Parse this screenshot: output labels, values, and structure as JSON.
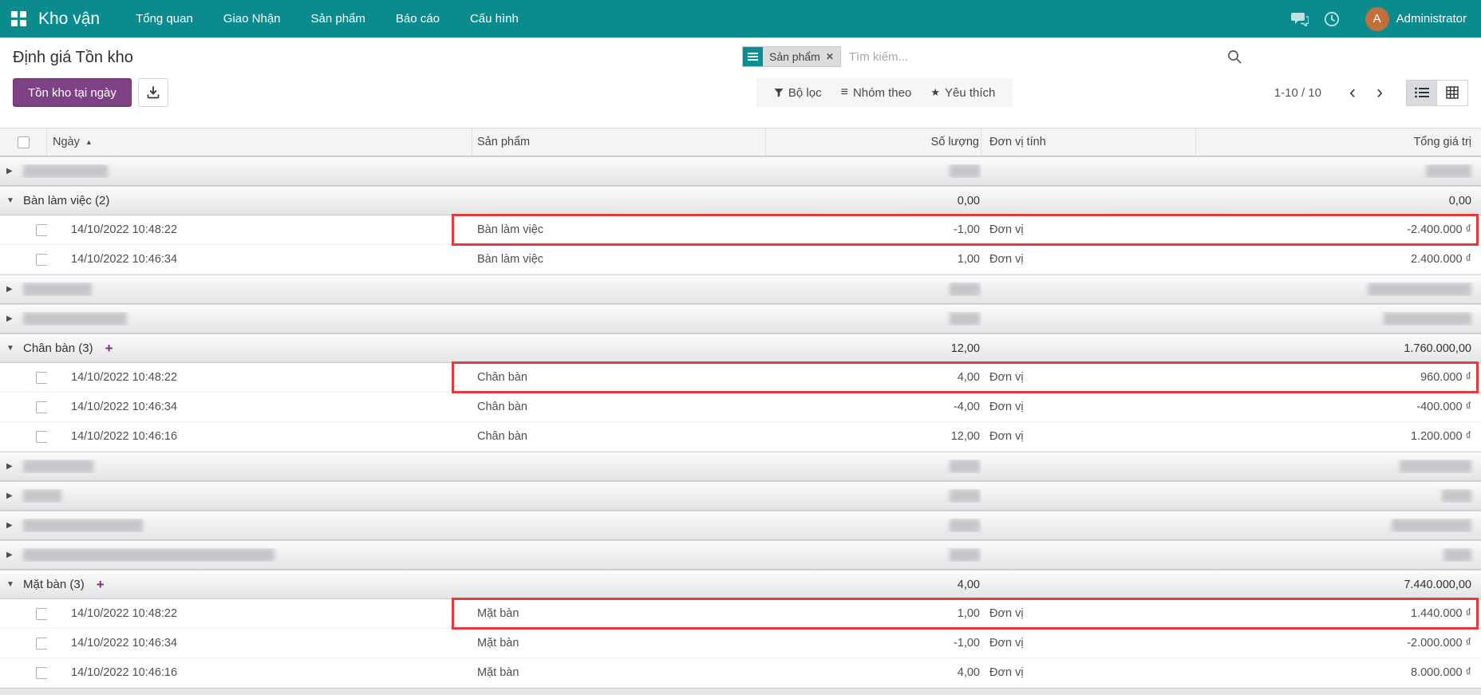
{
  "navbar": {
    "app_name": "Kho vận",
    "menus": [
      "Tổng quan",
      "Giao Nhận",
      "Sản phẩm",
      "Báo cáo",
      "Cấu hình"
    ],
    "user_name": "Administrator",
    "avatar_initial": "A"
  },
  "control_panel": {
    "title": "Định giá Tồn kho",
    "inventory_at_date_button": "Tồn kho tại ngày",
    "search": {
      "facet": "Sản phẩm",
      "placeholder": "Tìm kiếm..."
    },
    "filters_button": "Bộ lọc",
    "group_by_button": "Nhóm theo",
    "favorites_button": "Yêu thích",
    "pager": "1-10 / 10"
  },
  "table": {
    "columns": [
      "Ngày",
      "Sản phẩm",
      "Số lượng",
      "Đơn vị tính",
      "Tổng giá trị"
    ],
    "rows": [
      {
        "type": "group_closed",
        "name_blur": 106,
        "qty_blur": 38,
        "total_blur": 57
      },
      {
        "type": "group_open",
        "label": "Bàn làm việc (2)",
        "add_button": false,
        "qty": "0,00",
        "total": "0,00"
      },
      {
        "type": "record",
        "date": "14/10/2022 10:48:22",
        "product": "Bàn làm việc",
        "qty": "-1,00",
        "uom": "Đơn vị",
        "value": "-2.400.000 ₫",
        "highlight": true
      },
      {
        "type": "record",
        "date": "14/10/2022 10:46:34",
        "product": "Bàn làm việc",
        "qty": "1,00",
        "uom": "Đơn vị",
        "value": "2.400.000 ₫",
        "highlight": false
      },
      {
        "type": "group_closed",
        "name_blur": 86,
        "qty_blur": 38,
        "total_blur": 130
      },
      {
        "type": "group_closed",
        "name_blur": 130,
        "qty_blur": 38,
        "total_blur": 110
      },
      {
        "type": "group_open",
        "label": "Chân bàn (3)",
        "add_button": true,
        "qty": "12,00",
        "total": "1.760.000,00"
      },
      {
        "type": "record",
        "date": "14/10/2022 10:48:22",
        "product": "Chân bàn",
        "qty": "4,00",
        "uom": "Đơn vị",
        "value": "960.000 ₫",
        "highlight": true
      },
      {
        "type": "record",
        "date": "14/10/2022 10:46:34",
        "product": "Chân bàn",
        "qty": "-4,00",
        "uom": "Đơn vị",
        "value": "-400.000 ₫",
        "highlight": false
      },
      {
        "type": "record",
        "date": "14/10/2022 10:46:16",
        "product": "Chân bàn",
        "qty": "12,00",
        "uom": "Đơn vị",
        "value": "1.200.000 ₫",
        "highlight": false
      },
      {
        "type": "group_closed",
        "name_blur": 88,
        "qty_blur": 38,
        "total_blur": 90
      },
      {
        "type": "group_closed",
        "name_blur": 48,
        "qty_blur": 38,
        "total_blur": 37
      },
      {
        "type": "group_closed",
        "name_blur": 150,
        "qty_blur": 38,
        "total_blur": 100
      },
      {
        "type": "group_closed",
        "name_blur": 315,
        "qty_blur": 38,
        "total_blur": 35
      },
      {
        "type": "group_open",
        "label": "Mặt bàn (3)",
        "add_button": true,
        "qty": "4,00",
        "total": "7.440.000,00"
      },
      {
        "type": "record",
        "date": "14/10/2022 10:48:22",
        "product": "Mặt bàn",
        "qty": "1,00",
        "uom": "Đơn vị",
        "value": "1.440.000 ₫",
        "highlight": true
      },
      {
        "type": "record",
        "date": "14/10/2022 10:46:34",
        "product": "Mặt bàn",
        "qty": "-1,00",
        "uom": "Đơn vị",
        "value": "-2.000.000 ₫",
        "highlight": false
      },
      {
        "type": "record",
        "date": "14/10/2022 10:46:16",
        "product": "Mặt bàn",
        "qty": "4,00",
        "uom": "Đơn vị",
        "value": "8.000.000 ₫",
        "highlight": false
      }
    ]
  },
  "colors": {
    "navbar_teal": "#0b8b8d",
    "accent_purple": "#7e4183",
    "highlight_red": "#e23b3d",
    "avatar_orange": "#c06f3d"
  }
}
